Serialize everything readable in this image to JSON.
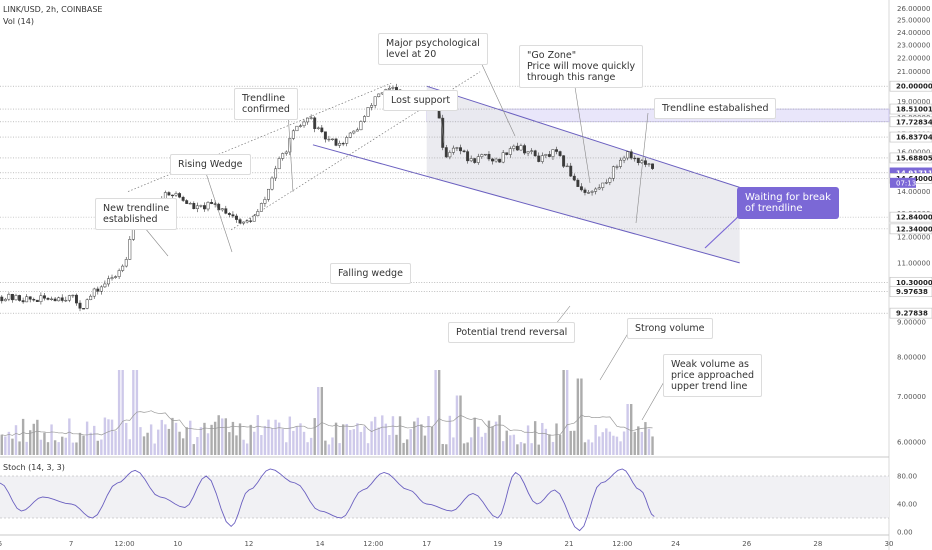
{
  "header": {
    "symbol": "LINK/USD, 2h, COINBASE",
    "volume_label": "Vol (14)",
    "stoch_label": "Stoch (14, 3, 3)"
  },
  "colors": {
    "up": "#3a3a3a",
    "down": "#3a3a3a",
    "wedge_line": "#6b60c0",
    "wedge_fill": "#e9e9ee",
    "callout": "#7b68d6",
    "volume_up": "#c6c0e6",
    "volume_down": "#9e9e9e",
    "go_zone": "#e9e6fa",
    "stoch_line": "#6b60c0"
  },
  "chart_data": [
    {
      "type": "candlestick",
      "yscale": "log",
      "ylim": [
        5.8,
        26.5
      ],
      "yticks": [
        "26.00000",
        "25.00000",
        "24.00000",
        "23.00000",
        "22.00000",
        "21.00000",
        "20.00000",
        "19.00000",
        "18.00000",
        "17.00000",
        "16.00000",
        "15.00000",
        "14.00000",
        "13.00000",
        "12.00000",
        "11.00000",
        "10.00000",
        "9.00000",
        "8.00000",
        "7.00000",
        "6.00000"
      ],
      "ytick_values": [
        26,
        25,
        24,
        23,
        22,
        21,
        20,
        19,
        18,
        17,
        16,
        15,
        14,
        13,
        12,
        11,
        10,
        9,
        8,
        7,
        6
      ],
      "xticks": [
        "5",
        "7",
        "12:00",
        "10",
        "12",
        "14",
        "12:00",
        "17",
        "19",
        "21",
        "12:00",
        "24",
        "26",
        "28",
        "30"
      ],
      "xtick_values": [
        0,
        2,
        3.5,
        5,
        7,
        9,
        10.5,
        12,
        14,
        16,
        17.5,
        19,
        21,
        23,
        25
      ],
      "xlim": [
        0,
        25
      ],
      "price_series": [
        [
          0,
          9.8
        ],
        [
          0.5,
          9.75
        ],
        [
          1,
          9.7
        ],
        [
          1.5,
          9.78
        ],
        [
          2,
          9.8
        ],
        [
          2.3,
          9.45
        ],
        [
          2.6,
          9.9
        ],
        [
          3,
          10.3
        ],
        [
          3.3,
          10.6
        ],
        [
          3.6,
          11.4
        ],
        [
          3.8,
          13.5
        ],
        [
          4.2,
          13.0
        ],
        [
          4.7,
          14.0
        ],
        [
          5,
          13.8
        ],
        [
          5.5,
          13.2
        ],
        [
          6,
          13.4
        ],
        [
          6.5,
          13.0
        ],
        [
          6.8,
          12.5
        ],
        [
          7.2,
          12.9
        ],
        [
          7.5,
          13.8
        ],
        [
          7.7,
          15.0
        ],
        [
          8,
          16.0
        ],
        [
          8.3,
          17.2
        ],
        [
          8.7,
          18.0
        ],
        [
          9,
          17.0
        ],
        [
          9.3,
          16.6
        ],
        [
          9.6,
          16.5
        ],
        [
          10,
          17.2
        ],
        [
          10.3,
          18.2
        ],
        [
          10.6,
          19.5
        ],
        [
          11,
          19.8
        ],
        [
          11.4,
          19.3
        ],
        [
          11.7,
          19.4
        ],
        [
          12,
          19.0
        ],
        [
          12.3,
          18.8
        ],
        [
          12.5,
          15.5
        ],
        [
          12.8,
          16.5
        ],
        [
          13.2,
          15.5
        ],
        [
          13.6,
          15.8
        ],
        [
          14,
          15.5
        ],
        [
          14.4,
          16.4
        ],
        [
          14.8,
          16.1
        ],
        [
          15.2,
          15.6
        ],
        [
          15.6,
          16.0
        ],
        [
          16,
          15.0
        ],
        [
          16.3,
          14.2
        ],
        [
          16.6,
          13.9
        ],
        [
          17,
          14.4
        ],
        [
          17.3,
          15.2
        ],
        [
          17.6,
          16.0
        ],
        [
          17.9,
          15.6
        ],
        [
          18.2,
          15.3
        ],
        [
          18.4,
          14.9
        ]
      ],
      "horizontal_levels": [
        {
          "price": 20.0,
          "label": "20.00000"
        },
        {
          "price": 18.51001,
          "label": "18.51001"
        },
        {
          "price": 17.72834,
          "label": "17.72834"
        },
        {
          "price": 16.83704,
          "label": "16.83704"
        },
        {
          "price": 15.68805,
          "label": "15.68805"
        },
        {
          "price": 14.91711,
          "label": "14.91711"
        },
        {
          "price": 14.64,
          "label": "14.64000"
        },
        {
          "price": 12.84,
          "label": "12.84000"
        },
        {
          "price": 12.34,
          "label": "12.34000"
        },
        {
          "price": 10.3,
          "label": "10.30000"
        },
        {
          "price": 9.97638,
          "label": "9.97638"
        },
        {
          "price": 9.27838,
          "label": "9.27838"
        }
      ],
      "current_price": {
        "price": 14.91711,
        "label": "14.91711",
        "countdown": "07:13"
      },
      "go_zone": [
        17.72834,
        18.51001
      ],
      "rising_wedge": {
        "upper": [
          [
            3.6,
            14.0
          ],
          [
            11.0,
            20.2
          ]
        ],
        "lower": [
          [
            6.5,
            12.3
          ],
          [
            13.5,
            21.0
          ]
        ]
      },
      "falling_wedge": {
        "upper": [
          [
            12.0,
            20.0
          ],
          [
            20.8,
            14.2
          ]
        ],
        "lower": [
          [
            8.8,
            16.4
          ],
          [
            20.8,
            11.0
          ]
        ]
      },
      "annotations": [
        {
          "text": "New trendline\nestablished"
        },
        {
          "text": "Rising Wedge"
        },
        {
          "text": "Trendline\nconfirmed"
        },
        {
          "text": "Major psychological\nlevel at 20"
        },
        {
          "text": "Lost support"
        },
        {
          "text": "\"Go Zone\"\nPrice will move quickly\nthrough this range"
        },
        {
          "text": "Trendline estabalished"
        },
        {
          "text": "Falling wedge"
        },
        {
          "text": "Potential trend reversal"
        },
        {
          "text": "Strong volume"
        },
        {
          "text": "Weak volume as\nprice approached\nupper trend line"
        }
      ],
      "callout": {
        "text": "Waiting for break\nof trendline"
      }
    },
    {
      "type": "line",
      "name": "Stoch",
      "ylim": [
        0,
        100
      ],
      "yticks": [
        "80.00",
        "40.00",
        "0.00"
      ],
      "ytick_values": [
        80,
        40,
        0
      ],
      "band": [
        20,
        80
      ],
      "values": [
        [
          0,
          70
        ],
        [
          0.6,
          30
        ],
        [
          1.2,
          50
        ],
        [
          2,
          40
        ],
        [
          2.6,
          20
        ],
        [
          3.3,
          70
        ],
        [
          3.8,
          88
        ],
        [
          4.5,
          50
        ],
        [
          5.2,
          35
        ],
        [
          5.8,
          80
        ],
        [
          6.5,
          8
        ],
        [
          7,
          60
        ],
        [
          7.6,
          90
        ],
        [
          8.3,
          70
        ],
        [
          9,
          30
        ],
        [
          9.6,
          20
        ],
        [
          10.2,
          60
        ],
        [
          10.8,
          85
        ],
        [
          11.5,
          60
        ],
        [
          12,
          40
        ],
        [
          12.7,
          30
        ],
        [
          13.3,
          55
        ],
        [
          14,
          20
        ],
        [
          14.5,
          85
        ],
        [
          15.1,
          40
        ],
        [
          15.6,
          60
        ],
        [
          16.3,
          2
        ],
        [
          16.9,
          70
        ],
        [
          17.5,
          90
        ],
        [
          18,
          60
        ],
        [
          18.4,
          22
        ]
      ]
    }
  ]
}
